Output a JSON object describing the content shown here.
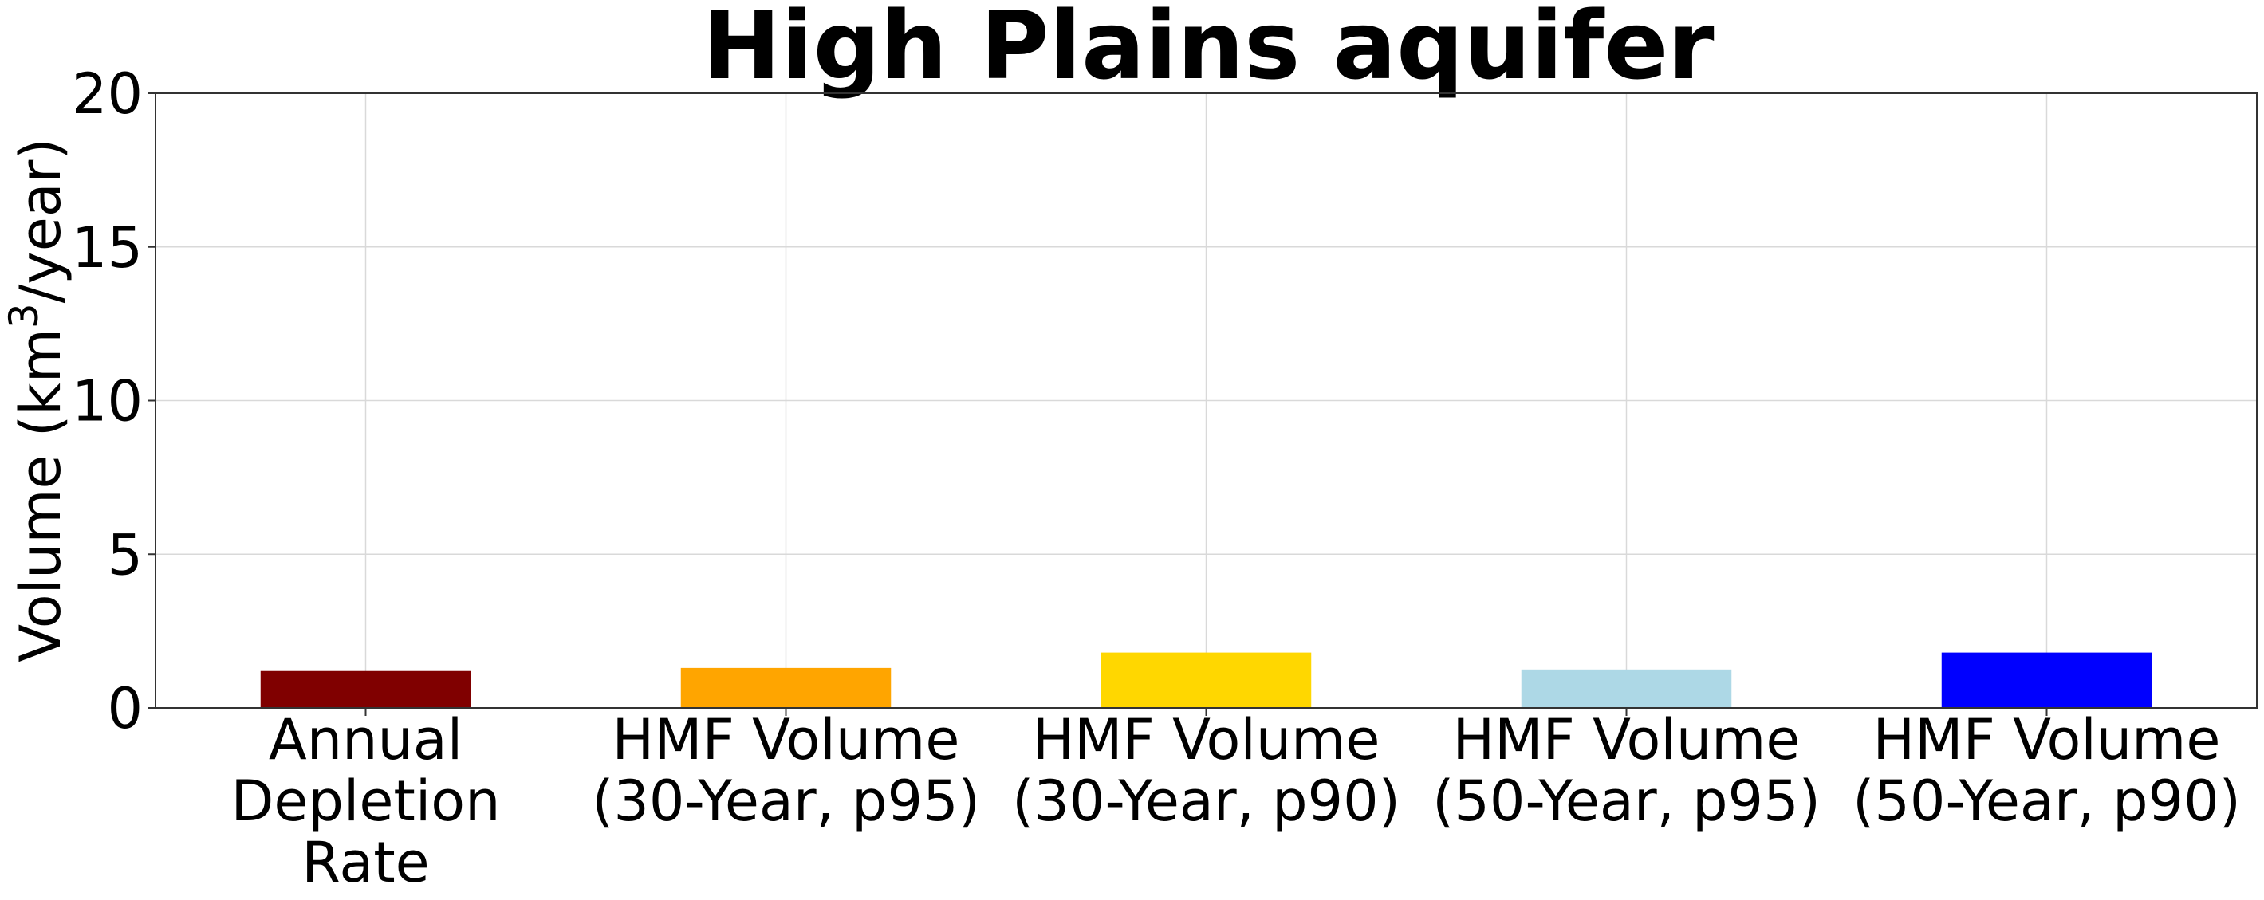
{
  "chart_data": {
    "type": "bar",
    "title": "High Plains aquifer",
    "ylabel": "Volume (km³/year)",
    "xlabel": "",
    "ylim": [
      0,
      20
    ],
    "yticks": [
      0,
      5,
      10,
      15,
      20
    ],
    "grid": true,
    "categories": [
      [
        "Annual",
        "Depletion",
        "Rate"
      ],
      [
        "HMF Volume",
        "(30-Year, p95)"
      ],
      [
        "HMF Volume",
        "(30-Year, p90)"
      ],
      [
        "HMF Volume",
        "(50-Year, p95)"
      ],
      [
        "HMF Volume",
        "(50-Year, p90)"
      ]
    ],
    "values": [
      1.2,
      1.3,
      1.8,
      1.25,
      1.8
    ],
    "colors": [
      "#800000",
      "#FFA500",
      "#FFD700",
      "#ADD8E6",
      "#0000FF"
    ]
  }
}
